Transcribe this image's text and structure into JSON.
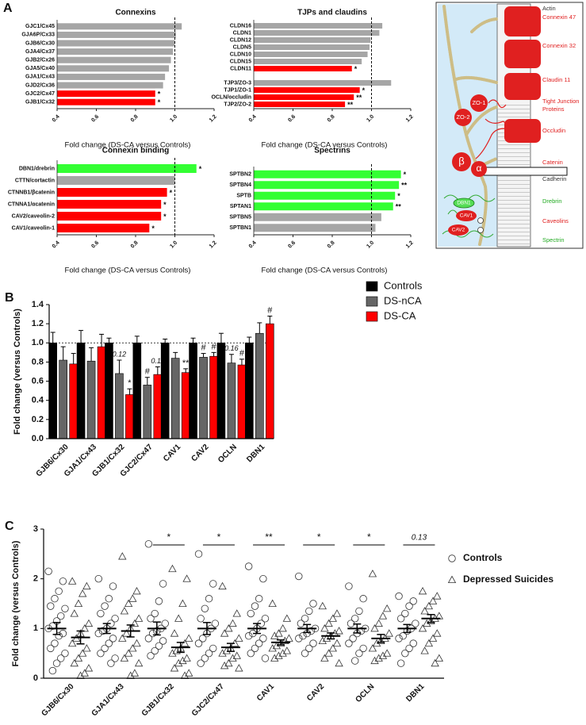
{
  "chart_data": [
    {
      "type": "bar",
      "orientation": "horizontal",
      "panel": "A",
      "title": "Connexins",
      "categories": [
        "GJC1/Cx45",
        "GJA6P/Cx33",
        "GJB6/Cx30",
        "GJA4/Cx37",
        "GJB2/Cx26",
        "GJA5/Cx40",
        "GJA1/Cx43",
        "GJD2/Cx36",
        "GJC2/Cx47",
        "GJB1/Cx32"
      ],
      "values": [
        1.035,
        1.005,
        1.0,
        0.99,
        0.98,
        0.97,
        0.95,
        0.94,
        0.9,
        0.9
      ],
      "colors": [
        "#a6a6a6",
        "#a6a6a6",
        "#a6a6a6",
        "#a6a6a6",
        "#a6a6a6",
        "#a6a6a6",
        "#a6a6a6",
        "#a6a6a6",
        "#ff0000",
        "#ff0000"
      ],
      "annotations": [
        null,
        null,
        null,
        null,
        null,
        null,
        null,
        null,
        "*",
        "*"
      ],
      "xlabel": "Fold change (DS-CA versus Controls)",
      "xlim": [
        0.4,
        1.2
      ],
      "xticks": [
        0.4,
        0.6,
        0.8,
        {
          "value": 1,
          "label": "1.0"
        },
        1.2
      ],
      "reference_line": 1
    },
    {
      "type": "bar",
      "orientation": "horizontal",
      "title": "TJPs and claudins",
      "categories": [
        "CLDN16",
        "CLDN1",
        "CLDN12",
        "CLDN5",
        "CLDN10",
        "CLDN15",
        "CLDN11",
        null,
        "TJP3/ZO-3",
        "TJP1/ZO-1",
        "OCLN/occludin",
        "TJP2/ZO-2"
      ],
      "values": [
        1.055,
        1.04,
        0.995,
        0.99,
        0.98,
        0.95,
        0.9,
        null,
        1.1,
        0.94,
        0.91,
        0.865
      ],
      "colors": [
        "#a6a6a6",
        "#a6a6a6",
        "#a6a6a6",
        "#a6a6a6",
        "#a6a6a6",
        "#a6a6a6",
        "#ff0000",
        null,
        "#a6a6a6",
        "#ff0000",
        "#ff0000",
        "#ff0000"
      ],
      "annotations": [
        null,
        null,
        null,
        null,
        null,
        null,
        "*",
        null,
        null,
        "*",
        "**",
        "**"
      ],
      "xlabel": "Fold change (DS-CA versus Controls)",
      "xlim": [
        0.4,
        1.2
      ],
      "xticks": [
        0.4,
        0.6,
        0.8,
        {
          "value": 1,
          "label": "1.0"
        },
        1.2
      ],
      "reference_line": 1
    },
    {
      "type": "bar",
      "orientation": "horizontal",
      "title": "Connexin binding",
      "categories": [
        "DBN1/drebrin",
        "CTTN/cortactin",
        "CTNNB1/βcatenin",
        "CTNNA1/αcatenin",
        "CAV2/caveolin-2",
        "CAV1/caveolin-1"
      ],
      "values": [
        1.11,
        1.0,
        0.96,
        0.93,
        0.93,
        0.87
      ],
      "colors": [
        "#33ff33",
        "#a6a6a6",
        "#ff0000",
        "#ff0000",
        "#ff0000",
        "#ff0000"
      ],
      "annotations": [
        "*",
        null,
        "*",
        "*",
        "*",
        "*"
      ],
      "xlabel": "Fold change (DS-CA versus Controls)",
      "xlim": [
        0.4,
        1.2
      ],
      "xticks": [
        0.4,
        0.6,
        0.8,
        {
          "value": 1,
          "label": "1.0"
        },
        1.2
      ],
      "reference_line": 1
    },
    {
      "type": "bar",
      "orientation": "horizontal",
      "title": "Spectrins",
      "categories": [
        "SPTBN2",
        "SPTBN4",
        "SPTB",
        "SPTAN1",
        "SPTBN5",
        "SPTBN1"
      ],
      "values": [
        1.15,
        1.14,
        1.12,
        1.11,
        1.05,
        1.02
      ],
      "colors": [
        "#33ff33",
        "#33ff33",
        "#33ff33",
        "#33ff33",
        "#a6a6a6",
        "#a6a6a6"
      ],
      "annotations": [
        "*",
        "**",
        "*",
        "**",
        null,
        null
      ],
      "xlabel": "Fold change (DS-CA versus Controls)",
      "xlim": [
        0.4,
        1.2
      ],
      "xticks": [
        0.4,
        0.6,
        0.8,
        {
          "value": 1,
          "label": "1.0"
        },
        1.2
      ],
      "reference_line": 1
    },
    {
      "type": "bar",
      "orientation": "vertical",
      "panel": "B",
      "categories": [
        "GJB6/Cx30",
        "GJA1/Cx43",
        "GJB1/Cx32",
        "GJC2/Cx47",
        "CAV1",
        "CAV2",
        "OCLN",
        "DBN1"
      ],
      "series": [
        {
          "name": "Controls",
          "color": "#000000",
          "values": [
            1,
            1,
            1,
            1,
            1,
            1,
            1,
            1
          ],
          "errors": [
            0.11,
            0.13,
            0.05,
            0.07,
            0.04,
            0.05,
            0.1,
            0.06
          ],
          "annotations": [
            null,
            null,
            null,
            null,
            null,
            null,
            null,
            null
          ]
        },
        {
          "name": "DS-nCA",
          "color": "#666666",
          "values": [
            0.82,
            0.81,
            0.68,
            0.56,
            0.84,
            0.85,
            0.79,
            1.1
          ],
          "errors": [
            0.14,
            0.14,
            0.14,
            0.08,
            0.06,
            0.04,
            0.09,
            0.11
          ],
          "annotations": [
            null,
            null,
            "0.12",
            "#",
            null,
            "#",
            "0.16",
            null
          ]
        },
        {
          "name": "DS-CA",
          "color": "#ff0000",
          "values": [
            0.78,
            0.96,
            0.46,
            0.67,
            0.69,
            0.86,
            0.77,
            1.2
          ],
          "errors": [
            0.11,
            0.13,
            0.06,
            0.08,
            0.04,
            0.04,
            0.06,
            0.08
          ],
          "annotations": [
            null,
            null,
            "*",
            "0.11",
            "**",
            "#",
            "#",
            "#"
          ]
        }
      ],
      "ylabel": "Fold change (versus Controls)",
      "ylim": [
        0,
        1.4
      ],
      "yticks": [
        {
          "value": 0,
          "label": "0.0"
        },
        0.2,
        0.4,
        0.6,
        0.8,
        {
          "value": 1,
          "label": "1.0"
        },
        1.2,
        1.4
      ],
      "reference_line": 1,
      "legend": "top-right"
    },
    {
      "type": "dot",
      "panel": "C",
      "categories": [
        "GJB6/Cx30",
        "GJA1/Cx43",
        "GJB1/Cx32",
        "GJC2/Cx47",
        "CAV1",
        "CAV2",
        "OCLN",
        "DBN1"
      ],
      "series": [
        {
          "name": "Controls",
          "marker": "circle",
          "values": [
            [
              2.15,
              1.95,
              1.75,
              1.6,
              1.45,
              1.4,
              1.25,
              1.15,
              1.05,
              1.0,
              0.9,
              0.85,
              0.7,
              0.6,
              0.5,
              0.4,
              0.3,
              0.15
            ],
            [
              2.0,
              1.85,
              1.6,
              1.45,
              1.3,
              1.2,
              1.1,
              1.0,
              0.95,
              0.9,
              0.8,
              0.7,
              0.6,
              0.5,
              0.4,
              0.3
            ],
            [
              2.7,
              1.9,
              1.55,
              1.3,
              1.2,
              1.1,
              1.0,
              0.95,
              0.9,
              0.8,
              0.75,
              0.65,
              0.55,
              0.45
            ],
            [
              2.5,
              1.9,
              1.6,
              1.4,
              1.2,
              1.1,
              1.0,
              0.9,
              0.8,
              0.7,
              0.6,
              0.5,
              0.4,
              0.3
            ],
            [
              2.25,
              2.0,
              1.6,
              1.45,
              1.3,
              1.2,
              1.1,
              1.0,
              0.9,
              0.85,
              0.8,
              0.7,
              0.6,
              0.5,
              0.4
            ],
            [
              2.05,
              1.5,
              1.35,
              1.2,
              1.1,
              1.0,
              0.95,
              0.9,
              0.85,
              0.8,
              0.7,
              0.6,
              0.5
            ],
            [
              1.85,
              1.6,
              1.35,
              1.2,
              1.1,
              1.0,
              0.95,
              0.9,
              0.8,
              0.7,
              0.6,
              0.5,
              0.35
            ],
            [
              1.65,
              1.55,
              1.45,
              1.3,
              1.2,
              1.1,
              1.0,
              0.95,
              0.85,
              0.8,
              0.7,
              0.6,
              0.5,
              0.3
            ]
          ],
          "mean": [
            1,
            1,
            1,
            1,
            1,
            1,
            1,
            1
          ],
          "sem": [
            0.12,
            0.1,
            0.13,
            0.12,
            0.1,
            0.08,
            0.09,
            0.08
          ]
        },
        {
          "name": "Depressed Suicides",
          "marker": "triangle",
          "values": [
            [
              1.95,
              1.85,
              1.7,
              1.5,
              1.3,
              1.1,
              1.0,
              0.9,
              0.8,
              0.7,
              0.6,
              0.5,
              0.4,
              0.3,
              0.2,
              0.1,
              0.05
            ],
            [
              2.45,
              1.75,
              1.6,
              1.5,
              1.35,
              1.2,
              1.1,
              1.0,
              0.9,
              0.8,
              0.7,
              0.6,
              0.5,
              0.4,
              0.3,
              0.1,
              0.05
            ],
            [
              2.2,
              2.0,
              1.5,
              1.2,
              0.9,
              0.8,
              0.7,
              0.6,
              0.55,
              0.5,
              0.4,
              0.35,
              0.3,
              0.2,
              0.1,
              0.05
            ],
            [
              1.85,
              1.3,
              1.1,
              1.0,
              0.9,
              0.8,
              0.7,
              0.6,
              0.55,
              0.5,
              0.45,
              0.4,
              0.3,
              0.25,
              0.2
            ],
            [
              1.5,
              1.2,
              1.0,
              0.9,
              0.85,
              0.8,
              0.75,
              0.7,
              0.65,
              0.6,
              0.55,
              0.5,
              0.45,
              0.4
            ],
            [
              1.45,
              1.3,
              1.2,
              1.1,
              1.0,
              0.95,
              0.9,
              0.85,
              0.8,
              0.75,
              0.7,
              0.6,
              0.5,
              0.4,
              0.3
            ],
            [
              2.1,
              1.4,
              1.25,
              1.1,
              1.0,
              0.9,
              0.8,
              0.75,
              0.7,
              0.6,
              0.5,
              0.45,
              0.4,
              0.35
            ],
            [
              1.75,
              1.65,
              1.55,
              1.45,
              1.35,
              1.25,
              1.2,
              1.15,
              1.1,
              1.0,
              0.9,
              0.8,
              0.7,
              0.55,
              0.4,
              0.3
            ]
          ],
          "mean": [
            0.82,
            0.95,
            0.62,
            0.62,
            0.72,
            0.85,
            0.8,
            1.2
          ],
          "sem": [
            0.13,
            0.12,
            0.1,
            0.08,
            0.05,
            0.06,
            0.08,
            0.08
          ]
        }
      ],
      "annotations": [
        null,
        null,
        "*",
        "*",
        "**",
        "*",
        "*",
        "0.13"
      ],
      "ylabel": "Fold change (versus Controls)",
      "ylim": [
        0,
        3
      ],
      "yticks": [
        0,
        1,
        2,
        3
      ],
      "legend": "right"
    }
  ],
  "diagram": {
    "labels": [
      "Actin",
      "Connexin 47",
      "Connexin 32",
      "Claudin 11",
      "Tight Junction",
      "Proteins",
      "Occludin",
      "Catenin",
      "Cadherin",
      "Drebrin",
      "Caveolins",
      "Spectrin"
    ],
    "markers": [
      "ZO-1",
      "ZO-2",
      "β",
      "α",
      "DBN1",
      "CAV1",
      "CAV2"
    ]
  }
}
